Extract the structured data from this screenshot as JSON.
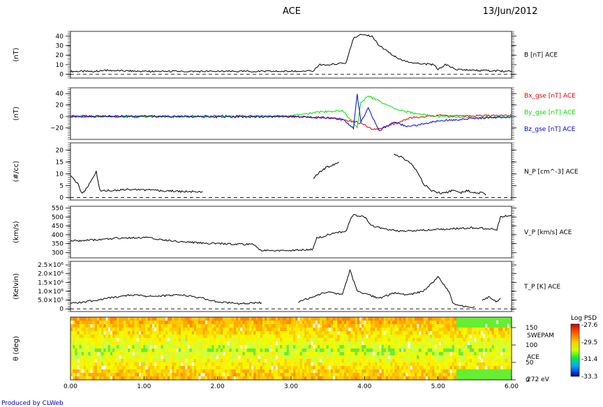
{
  "header": {
    "title": "ACE",
    "date": "13/Jun/2012"
  },
  "footer": {
    "credit": "Produced by CLWeb"
  },
  "x_axis": {
    "ticks": [
      "0.00",
      "1.00",
      "2.00",
      "3.00",
      "4.00",
      "5.00",
      "6.00"
    ],
    "range": [
      0,
      6
    ]
  },
  "colors": {
    "red": "#e00000",
    "green": "#00e000",
    "blue": "#0000e0",
    "black": "#000000"
  },
  "chart_data": [
    {
      "type": "line",
      "ylabel": "(nT)",
      "ylim": [
        -4,
        45
      ],
      "yticks": [
        0,
        10,
        20,
        30,
        40
      ],
      "ytick_labels": [
        "0",
        "10",
        "20",
        "30",
        "40"
      ],
      "zero_line": 0,
      "series": [
        {
          "name": "B [nT] ACE",
          "color": "#000000",
          "x": [
            0,
            0.3,
            0.5,
            1.0,
            1.5,
            2.0,
            2.5,
            3.0,
            3.3,
            3.38,
            3.5,
            3.75,
            3.8,
            3.85,
            3.95,
            4.1,
            4.2,
            4.35,
            4.5,
            4.65,
            4.8,
            4.95,
            5.0,
            5.1,
            5.25,
            5.5,
            6.0
          ],
          "y": [
            3,
            3,
            4,
            3,
            3,
            3,
            3,
            3,
            3.5,
            10,
            10,
            12,
            25,
            38,
            42,
            40,
            30,
            22,
            15,
            12,
            11,
            10,
            5,
            10,
            5,
            4,
            3
          ]
        }
      ]
    },
    {
      "type": "line",
      "ylabel": "(nT)",
      "ylim": [
        -40,
        50
      ],
      "yticks": [
        -20,
        0,
        20,
        40
      ],
      "ytick_labels": [
        "−20",
        "0",
        "20",
        "40"
      ],
      "series": [
        {
          "name": "Bx_gse [nT] ACE",
          "color": "#e00000",
          "x": [
            0,
            1,
            2,
            3,
            3.5,
            3.9,
            4.0,
            4.05,
            4.15,
            4.3,
            4.6,
            5.0,
            5.5,
            6.0
          ],
          "y": [
            0,
            -1,
            1,
            0,
            -2,
            -10,
            -15,
            -20,
            -22,
            -18,
            -3,
            2,
            1,
            2
          ]
        },
        {
          "name": "By_gse [nT] ACE",
          "color": "#00e000",
          "x": [
            0,
            1,
            2,
            3,
            3.4,
            3.7,
            3.9,
            3.95,
            4.05,
            4.15,
            4.3,
            4.5,
            4.7,
            5.0,
            5.5,
            6.0
          ],
          "y": [
            1,
            0,
            0,
            1,
            8,
            10,
            -18,
            25,
            35,
            30,
            20,
            10,
            5,
            0,
            -2,
            0
          ]
        },
        {
          "name": "Bz_gse [nT] ACE",
          "color": "#0000e0",
          "x": [
            0,
            1,
            2,
            3,
            3.5,
            3.7,
            3.85,
            3.9,
            3.95,
            4.05,
            4.2,
            4.4,
            4.6,
            5.0,
            5.5,
            6.0
          ],
          "y": [
            0,
            1,
            -1,
            0,
            -2,
            -5,
            -20,
            38,
            -10,
            15,
            -25,
            -10,
            -18,
            -8,
            -3,
            -1
          ]
        }
      ],
      "legend": "right"
    },
    {
      "type": "line",
      "ylabel": "(#/cc)",
      "ylim": [
        -1,
        23
      ],
      "yticks": [
        0,
        5,
        10,
        15,
        20
      ],
      "ytick_labels": [
        "0",
        "5",
        "10",
        "15",
        "20"
      ],
      "zero_line": 0,
      "series": [
        {
          "name": "N_P [cm^-3] ACE",
          "color": "#000000",
          "segments": [
            {
              "x": [
                0,
                0.1,
                0.15,
                0.2,
                0.3,
                0.35,
                0.4,
                0.5,
                0.8,
                1.2,
                1.6,
                1.8
              ],
              "y": [
                9,
                6,
                2,
                3,
                8,
                11,
                3,
                3,
                3.5,
                3,
                2.5,
                2.5
              ]
            },
            {
              "x": [
                3.3,
                3.4,
                3.5,
                3.6,
                3.65
              ],
              "y": [
                8,
                11,
                13,
                14,
                15
              ]
            },
            {
              "x": [
                4.4,
                4.5,
                4.6,
                4.7,
                4.8,
                4.9,
                5.0,
                5.1,
                5.2,
                5.3,
                5.4,
                5.5,
                5.6,
                5.65
              ],
              "y": [
                18,
                17,
                15,
                12,
                6,
                3,
                2,
                2,
                3,
                2,
                3,
                2,
                2,
                1
              ]
            }
          ]
        }
      ]
    },
    {
      "type": "line",
      "ylabel": "(km/s)",
      "ylim": [
        270,
        560
      ],
      "yticks": [
        300,
        350,
        400,
        450,
        500,
        550
      ],
      "ytick_labels": [
        "300",
        "350",
        "400",
        "450",
        "500",
        "550"
      ],
      "series": [
        {
          "name": "V_P [km/s] ACE",
          "color": "#000000",
          "x": [
            0,
            0.3,
            0.6,
            1.0,
            1.5,
            2.0,
            2.5,
            2.6,
            3.0,
            3.3,
            3.35,
            3.5,
            3.75,
            3.8,
            3.85,
            4.0,
            4.1,
            4.3,
            4.5,
            5.0,
            5.5,
            5.8,
            5.85,
            6.0
          ],
          "y": [
            365,
            370,
            380,
            385,
            360,
            350,
            345,
            310,
            310,
            320,
            380,
            400,
            420,
            480,
            510,
            500,
            450,
            430,
            420,
            430,
            440,
            430,
            500,
            510
          ]
        }
      ]
    },
    {
      "type": "line",
      "ylabel": "(Kelvin)",
      "ylim": [
        -150000,
        2700000
      ],
      "yticks": [
        0,
        500000,
        1000000,
        1500000,
        2000000,
        2500000
      ],
      "ytick_labels": [
        "0",
        "5.0×10⁵",
        "1.0×10⁶",
        "1.5×10⁶",
        "2.0×10⁶",
        "2.5×10⁶"
      ],
      "zero_line": 0,
      "series": [
        {
          "name": "T_P [K] ACE",
          "color": "#000000",
          "segments": [
            {
              "x": [
                0,
                0.2,
                0.5,
                0.8,
                1.1,
                1.5,
                1.8,
                2.0,
                2.3,
                2.6
              ],
              "y": [
                300000,
                400000,
                600000,
                800000,
                700000,
                800000,
                600000,
                400000,
                300000,
                350000
              ]
            },
            {
              "x": [
                3.1,
                3.3,
                3.5,
                3.7,
                3.8,
                3.9,
                4.2,
                4.4,
                4.6,
                4.8,
                5.0,
                5.15,
                5.2,
                5.4,
                5.5
              ],
              "y": [
                400000,
                700000,
                1000000,
                800000,
                2200000,
                1000000,
                600000,
                900000,
                800000,
                1000000,
                1800000,
                1000000,
                300000,
                100000,
                100000
              ]
            },
            {
              "x": [
                5.6,
                5.7,
                5.8,
                5.85
              ],
              "y": [
                500000,
                700000,
                400000,
                600000
              ]
            }
          ]
        }
      ]
    },
    {
      "type": "heatmap",
      "ylabel": "θ (deg)",
      "ylim": [
        0,
        180
      ],
      "yticks": [
        0,
        50,
        100,
        150
      ],
      "ytick_labels": [
        "0",
        "50",
        "100",
        "150"
      ],
      "right_labels": [
        "SWEPAM",
        "ACE",
        "272 eV"
      ],
      "colorbar": {
        "label": "Log PSD",
        "ticks": [
          "-27.6",
          "-29.5",
          "-31.4",
          "-33.3"
        ],
        "range": [
          -33.3,
          -27.6
        ]
      }
    }
  ]
}
